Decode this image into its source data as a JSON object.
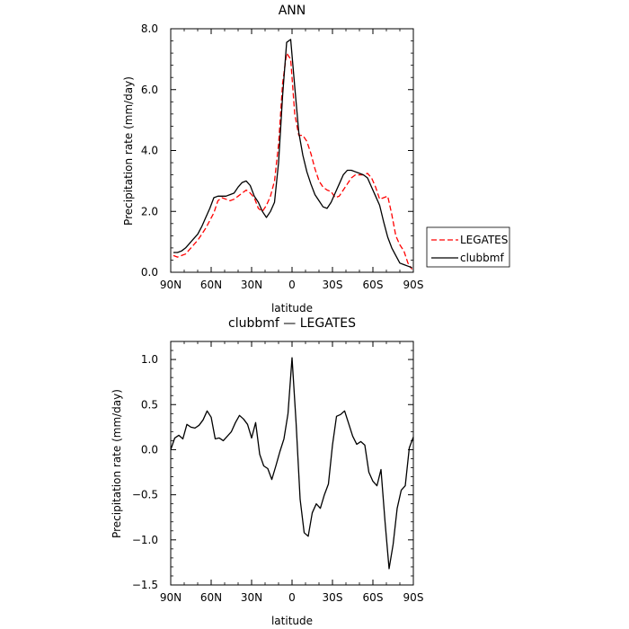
{
  "chart_data": [
    {
      "type": "line",
      "title": "ANN",
      "xlabel": "",
      "ylabel": "Precipitation rate (mm/day)",
      "xticks": [
        "90N",
        "60N",
        "30N",
        "0",
        "30S",
        "60S",
        "90S"
      ],
      "xtick_values": [
        -90,
        -60,
        -30,
        0,
        30,
        60,
        90
      ],
      "xlim": [
        -90,
        90
      ],
      "yticks": [
        "0.0",
        "2.0",
        "4.0",
        "6.0",
        "8.0"
      ],
      "ytick_values": [
        0,
        2,
        4,
        6,
        8
      ],
      "ylim": [
        0,
        8
      ],
      "legend_position": "right",
      "series": [
        {
          "name": "LEGATES",
          "color": "#ff0000",
          "dash": true,
          "x": [
            -88,
            -85,
            -82,
            -79,
            -76,
            -73,
            -70,
            -67,
            -64,
            -61,
            -58,
            -55,
            -52,
            -49,
            -46,
            -43,
            -40,
            -37,
            -34,
            -31,
            -28,
            -25,
            -22,
            -19,
            -16,
            -13,
            -10,
            -7,
            -4,
            -1,
            2,
            5,
            8,
            11,
            14,
            17,
            20,
            23,
            26,
            29,
            32,
            35,
            38,
            41,
            44,
            47,
            50,
            53,
            56,
            59,
            62,
            65,
            68,
            71,
            74,
            77,
            80,
            83,
            86,
            89
          ],
          "y": [
            0.55,
            0.5,
            0.55,
            0.6,
            0.75,
            0.9,
            1.05,
            1.25,
            1.45,
            1.7,
            1.95,
            2.35,
            2.45,
            2.4,
            2.35,
            2.4,
            2.5,
            2.6,
            2.7,
            2.6,
            2.45,
            2.1,
            2.0,
            2.2,
            2.5,
            3.0,
            4.2,
            6.2,
            7.2,
            7.0,
            5.2,
            4.5,
            4.5,
            4.3,
            3.9,
            3.4,
            3.0,
            2.8,
            2.7,
            2.65,
            2.45,
            2.5,
            2.7,
            2.9,
            3.1,
            3.2,
            3.2,
            3.2,
            3.25,
            3.1,
            2.8,
            2.4,
            2.45,
            2.5,
            1.9,
            1.2,
            0.9,
            0.7,
            0.3,
            0.1
          ]
        },
        {
          "name": "clubbmf",
          "color": "#000000",
          "dash": false,
          "x": [
            -88,
            -85,
            -82,
            -79,
            -76,
            -73,
            -70,
            -67,
            -64,
            -61,
            -58,
            -55,
            -52,
            -49,
            -46,
            -43,
            -40,
            -37,
            -34,
            -31,
            -28,
            -25,
            -22,
            -19,
            -16,
            -13,
            -10,
            -7,
            -4,
            -1,
            2,
            5,
            8,
            11,
            14,
            17,
            20,
            23,
            26,
            29,
            32,
            35,
            38,
            41,
            44,
            47,
            50,
            53,
            56,
            59,
            62,
            65,
            68,
            71,
            74,
            77,
            80,
            83,
            86,
            89
          ],
          "y": [
            0.65,
            0.65,
            0.7,
            0.8,
            0.95,
            1.1,
            1.25,
            1.5,
            1.8,
            2.1,
            2.45,
            2.5,
            2.5,
            2.5,
            2.55,
            2.6,
            2.8,
            2.95,
            3.0,
            2.85,
            2.5,
            2.3,
            2.0,
            1.8,
            2.0,
            2.3,
            3.6,
            5.8,
            7.55,
            7.65,
            6.1,
            4.6,
            3.85,
            3.3,
            2.9,
            2.55,
            2.35,
            2.15,
            2.1,
            2.3,
            2.6,
            2.9,
            3.2,
            3.35,
            3.35,
            3.3,
            3.25,
            3.2,
            3.1,
            2.8,
            2.5,
            2.2,
            1.65,
            1.15,
            0.8,
            0.55,
            0.3,
            0.25,
            0.2,
            0.15
          ]
        }
      ]
    },
    {
      "type": "line",
      "title": "clubbmf — LEGATES",
      "xlabel": "latitude",
      "ylabel": "Precipitation rate (mm/day)",
      "xticks": [
        "90N",
        "60N",
        "30N",
        "0",
        "30S",
        "60S",
        "90S"
      ],
      "xtick_values": [
        -90,
        -60,
        -30,
        0,
        30,
        60,
        90
      ],
      "xlim": [
        -90,
        90
      ],
      "yticks": [
        "−1.5",
        "−1.0",
        "−0.5",
        "0.0",
        "0.5",
        "1.0"
      ],
      "ytick_values": [
        -1.5,
        -1.0,
        -0.5,
        0,
        0.5,
        1.0
      ],
      "ylim": [
        -1.5,
        1.2
      ],
      "series": [
        {
          "color": "#000000",
          "dash": false,
          "x": [
            -90,
            -87,
            -84,
            -81,
            -78,
            -75,
            -72,
            -69,
            -66,
            -63,
            -60,
            -57,
            -54,
            -51,
            -48,
            -45,
            -42,
            -39,
            -36,
            -33,
            -30,
            -27,
            -24,
            -21,
            -18,
            -15,
            -12,
            -9,
            -6,
            -3,
            0,
            3,
            6,
            9,
            12,
            15,
            18,
            21,
            24,
            27,
            30,
            33,
            36,
            39,
            42,
            45,
            48,
            51,
            54,
            57,
            60,
            63,
            66,
            69,
            72,
            75,
            78,
            81,
            84,
            87,
            90
          ],
          "y": [
            0.0,
            0.13,
            0.16,
            0.12,
            0.28,
            0.25,
            0.24,
            0.27,
            0.33,
            0.43,
            0.36,
            0.12,
            0.13,
            0.1,
            0.15,
            0.2,
            0.3,
            0.38,
            0.34,
            0.28,
            0.13,
            0.3,
            -0.05,
            -0.18,
            -0.21,
            -0.33,
            -0.18,
            -0.02,
            0.12,
            0.4,
            1.02,
            0.3,
            -0.55,
            -0.92,
            -0.96,
            -0.7,
            -0.6,
            -0.65,
            -0.5,
            -0.38,
            0.05,
            0.37,
            0.39,
            0.43,
            0.29,
            0.15,
            0.06,
            0.09,
            0.05,
            -0.25,
            -0.35,
            -0.4,
            -0.22,
            -0.8,
            -1.32,
            -1.05,
            -0.65,
            -0.45,
            -0.4,
            0.02,
            0.14
          ]
        }
      ]
    }
  ]
}
